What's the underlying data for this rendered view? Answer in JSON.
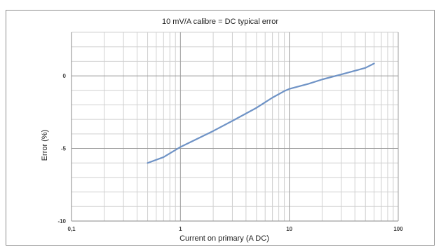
{
  "chart_data": {
    "type": "line",
    "title": "10 mV/A calibre = DC typical error",
    "xlabel": "Current on primary (A DC)",
    "ylabel": "Error (%)",
    "x_scale": "log",
    "xlim": [
      0.1,
      100
    ],
    "ylim": [
      -10,
      3
    ],
    "x_ticks": [
      0.1,
      1,
      10,
      100
    ],
    "x_tick_labels": [
      "0,1",
      "1",
      "10",
      "100"
    ],
    "y_ticks": [
      -10,
      -5,
      0
    ],
    "y_tick_labels": [
      "-10",
      "-5",
      "0"
    ],
    "grid": true,
    "legend": false,
    "series": [
      {
        "color": "#6f93c6",
        "points": [
          {
            "x": 0.5,
            "y": -6.0
          },
          {
            "x": 0.7,
            "y": -5.6
          },
          {
            "x": 1.0,
            "y": -4.9
          },
          {
            "x": 2.0,
            "y": -3.8
          },
          {
            "x": 3.0,
            "y": -3.1
          },
          {
            "x": 5.0,
            "y": -2.2
          },
          {
            "x": 7.0,
            "y": -1.5
          },
          {
            "x": 9.0,
            "y": -1.05
          },
          {
            "x": 10.0,
            "y": -0.9
          },
          {
            "x": 15.0,
            "y": -0.55
          },
          {
            "x": 20.0,
            "y": -0.25
          },
          {
            "x": 30.0,
            "y": 0.1
          },
          {
            "x": 40.0,
            "y": 0.35
          },
          {
            "x": 50.0,
            "y": 0.55
          },
          {
            "x": 60.0,
            "y": 0.85
          }
        ]
      }
    ]
  }
}
